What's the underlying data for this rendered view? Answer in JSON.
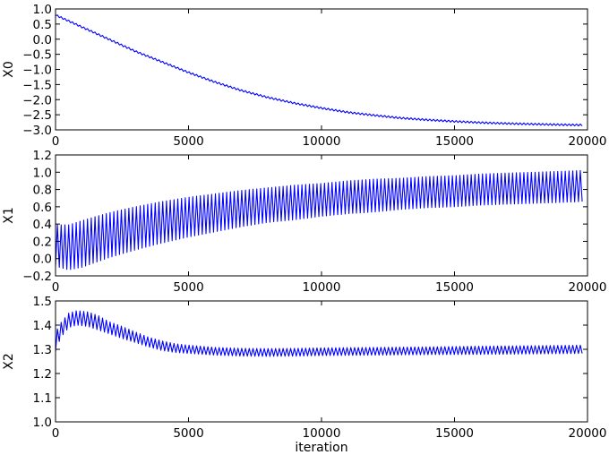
{
  "chart_data": [
    {
      "type": "line",
      "ylabel": "X0",
      "xlabel": "",
      "xlim": [
        0,
        20000
      ],
      "ylim": [
        -3.0,
        1.0
      ],
      "xticks": [
        0,
        5000,
        10000,
        15000,
        20000
      ],
      "xtick_labels": [
        "0",
        "5000",
        "10000",
        "15000",
        "20000"
      ],
      "yticks": [
        -3.0,
        -2.5,
        -2.0,
        -1.5,
        -1.0,
        -0.5,
        0.0,
        0.5,
        1.0
      ],
      "ytick_labels": [
        "−3.0",
        "−2.5",
        "−2.0",
        "−1.5",
        "−1.0",
        "−0.5",
        "0.0",
        "0.5",
        "1.0"
      ],
      "grid": false,
      "color": "#0000ff",
      "series": [
        {
          "x": [
            0,
            1000,
            2000,
            3000,
            4000,
            5000,
            6000,
            7000,
            8000,
            9000,
            10000,
            11000,
            12000,
            13000,
            14000,
            15000,
            16000,
            17000,
            18000,
            19000,
            19800
          ],
          "center": [
            0.8,
            0.4,
            0.0,
            -0.4,
            -0.75,
            -1.1,
            -1.42,
            -1.7,
            -1.93,
            -2.12,
            -2.28,
            -2.42,
            -2.52,
            -2.61,
            -2.67,
            -2.72,
            -2.76,
            -2.79,
            -2.81,
            -2.83,
            -2.84
          ],
          "amplitude": [
            0.03,
            0.03,
            0.03,
            0.03,
            0.03,
            0.03,
            0.03,
            0.03,
            0.03,
            0.03,
            0.03,
            0.03,
            0.03,
            0.03,
            0.03,
            0.03,
            0.03,
            0.03,
            0.03,
            0.03,
            0.03
          ]
        }
      ]
    },
    {
      "type": "line",
      "ylabel": "X1",
      "xlabel": "",
      "xlim": [
        0,
        20000
      ],
      "ylim": [
        -0.2,
        1.2
      ],
      "xticks": [
        0,
        5000,
        10000,
        15000,
        20000
      ],
      "xtick_labels": [
        "0",
        "5000",
        "10000",
        "15000",
        "20000"
      ],
      "yticks": [
        -0.2,
        0.0,
        0.2,
        0.4,
        0.6,
        0.8,
        1.0,
        1.2
      ],
      "ytick_labels": [
        "−0.2",
        "0.0",
        "0.2",
        "0.4",
        "0.6",
        "0.8",
        "1.0",
        "1.2"
      ],
      "grid": false,
      "color": "#0000ff",
      "series": [
        {
          "x": [
            0,
            500,
            1000,
            2000,
            3000,
            4000,
            5000,
            6000,
            7000,
            8000,
            9000,
            10000,
            11000,
            12000,
            13000,
            14000,
            15000,
            16000,
            17000,
            18000,
            19000,
            19800
          ],
          "center": [
            0.15,
            0.13,
            0.17,
            0.27,
            0.35,
            0.42,
            0.48,
            0.53,
            0.58,
            0.62,
            0.65,
            0.68,
            0.71,
            0.73,
            0.75,
            0.77,
            0.78,
            0.8,
            0.81,
            0.82,
            0.83,
            0.84
          ],
          "amplitude": [
            0.24,
            0.26,
            0.27,
            0.26,
            0.25,
            0.24,
            0.23,
            0.22,
            0.21,
            0.2,
            0.2,
            0.19,
            0.19,
            0.19,
            0.18,
            0.18,
            0.18,
            0.18,
            0.18,
            0.18,
            0.18,
            0.18
          ]
        }
      ]
    },
    {
      "type": "line",
      "ylabel": "X2",
      "xlabel": "iteration",
      "xlim": [
        0,
        20000
      ],
      "ylim": [
        1.0,
        1.5
      ],
      "xticks": [
        0,
        5000,
        10000,
        15000,
        20000
      ],
      "xtick_labels": [
        "0",
        "5000",
        "10000",
        "15000",
        "20000"
      ],
      "yticks": [
        1.0,
        1.1,
        1.2,
        1.3,
        1.4,
        1.5
      ],
      "ytick_labels": [
        "1.0",
        "1.1",
        "1.2",
        "1.3",
        "1.4",
        "1.5"
      ],
      "grid": false,
      "color": "#0000ff",
      "series": [
        {
          "x": [
            0,
            200,
            500,
            800,
            1200,
            1600,
            2000,
            2500,
            3000,
            3500,
            4000,
            4500,
            5000,
            6000,
            7000,
            8000,
            9000,
            10000,
            12000,
            14000,
            16000,
            18000,
            19800
          ],
          "center": [
            1.33,
            1.38,
            1.42,
            1.43,
            1.425,
            1.41,
            1.39,
            1.37,
            1.35,
            1.33,
            1.315,
            1.305,
            1.3,
            1.292,
            1.288,
            1.287,
            1.288,
            1.29,
            1.292,
            1.294,
            1.296,
            1.298,
            1.3
          ],
          "amplitude": [
            0.04,
            0.03,
            0.03,
            0.03,
            0.03,
            0.03,
            0.025,
            0.025,
            0.022,
            0.02,
            0.02,
            0.018,
            0.017,
            0.016,
            0.016,
            0.016,
            0.016,
            0.016,
            0.016,
            0.016,
            0.017,
            0.017,
            0.017
          ]
        }
      ]
    }
  ]
}
